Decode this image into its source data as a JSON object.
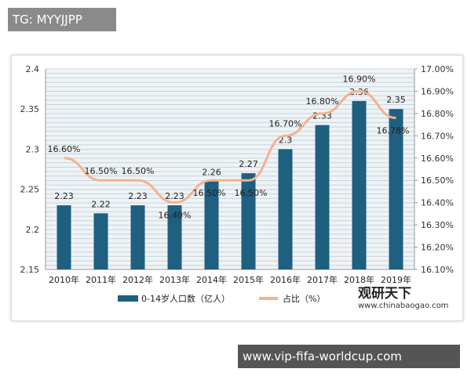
{
  "watermark_top": "TG: MYYJJPP",
  "watermark_bottom": "www.vip-fifa-worldcup.com",
  "logo": {
    "name": "观研天下",
    "url": "www.chinabaogao.com"
  },
  "chart_data": {
    "type": "bar+line",
    "categories": [
      "2010年",
      "2011年",
      "2012年",
      "2013年",
      "2014年",
      "2015年",
      "2016年",
      "2017年",
      "2018年",
      "2019年"
    ],
    "series": [
      {
        "name": "0-14岁人口数（亿人）",
        "type": "bar",
        "axis": "left",
        "color": "#1f5f7f",
        "values": [
          2.23,
          2.22,
          2.23,
          2.23,
          2.26,
          2.27,
          2.3,
          2.33,
          2.36,
          2.35
        ],
        "labels": [
          "2.23",
          "2.22",
          "2.23",
          "2.23",
          "2.26",
          "2.27",
          "2.3",
          "2.33",
          "2.36",
          "2.35"
        ]
      },
      {
        "name": "占比（%）",
        "type": "line",
        "axis": "right",
        "color": "#f2b38f",
        "values": [
          16.6,
          16.5,
          16.5,
          16.4,
          16.5,
          16.5,
          16.7,
          16.8,
          16.9,
          16.78
        ],
        "labels": [
          "16.60%",
          "16.50%",
          "16.50%",
          "16.40%",
          "16.50%",
          "16.50%",
          "16.70%",
          "16.80%",
          "16.90%",
          "16.78%"
        ]
      }
    ],
    "left_axis": {
      "min": 2.15,
      "max": 2.4,
      "ticks": [
        "2.15",
        "2.2",
        "2.25",
        "2.3",
        "2.35",
        "2.4"
      ]
    },
    "right_axis": {
      "min": 16.1,
      "max": 17.0,
      "ticks": [
        "16.10%",
        "16.20%",
        "16.30%",
        "16.40%",
        "16.50%",
        "16.60%",
        "16.70%",
        "16.80%",
        "16.90%",
        "17.00%"
      ]
    },
    "grid": true,
    "legend": "bottom"
  }
}
